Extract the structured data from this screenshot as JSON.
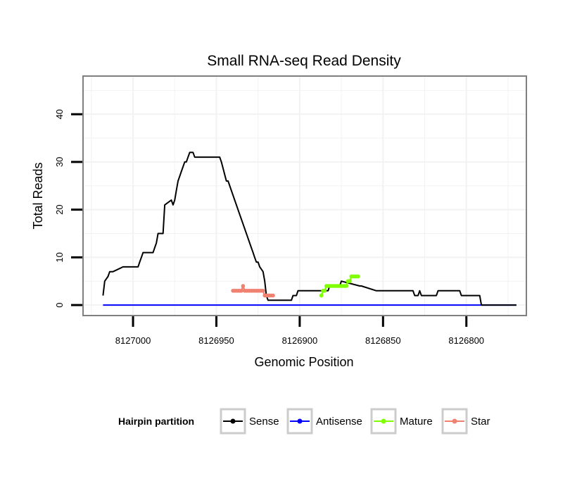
{
  "chart_data": {
    "type": "line",
    "title": "Small RNA-seq Read Density",
    "xlabel": "Genomic Position",
    "ylabel": "Total Reads",
    "x_reversed": true,
    "xlim": [
      8127030,
      8126764
    ],
    "ylim": [
      -2.2,
      48
    ],
    "x_ticks": [
      8127000,
      8126950,
      8126900,
      8126850,
      8126800
    ],
    "x_tick_labels": [
      "8127000",
      "8126950",
      "8126900",
      "8126850",
      "8126800"
    ],
    "y_ticks": [
      0,
      10,
      20,
      30,
      40
    ],
    "y_tick_labels": [
      "0",
      "10",
      "20",
      "30",
      "40"
    ],
    "grid": true,
    "legend": {
      "position": "bottom",
      "title": "Hairpin partition",
      "entries": [
        "Sense",
        "Antisense",
        "Mature",
        "Star"
      ]
    },
    "colors": {
      "Sense": "#000000",
      "Antisense": "#0000ff",
      "Mature": "#7fff00",
      "Star": "#f08070",
      "panel_border": "#7f7f7f",
      "grid": "#f2f2f2",
      "legend_key_border": "#cccccc"
    },
    "series": [
      {
        "name": "Sense",
        "x": [
          8127018,
          8127017,
          8127015,
          8127014,
          8127012,
          8127006,
          8127005,
          8126998,
          8126997,
          8126996,
          8126995,
          8126994,
          8126993,
          8126992,
          8126991,
          8126990,
          8126989,
          8126988,
          8126987,
          8126986,
          8126985,
          8126982,
          8126981,
          8126977,
          8126976,
          8126975,
          8126974,
          8126973,
          8126972,
          8126971,
          8126970,
          8126969,
          8126968,
          8126967,
          8126966,
          8126965,
          8126964,
          8126963,
          8126948,
          8126947,
          8126944,
          8126943,
          8126936,
          8126935,
          8126929,
          8126928,
          8126927,
          8126926,
          8126925,
          8126924,
          8126922,
          8126921,
          8126920,
          8126919,
          8126918,
          8126917,
          8126916,
          8126915,
          8126914,
          8126913,
          8126912,
          8126908,
          8126907,
          8126906,
          8126905,
          8126904,
          8126903,
          8126902,
          8126901,
          8126899,
          8126898,
          8126897,
          8126896,
          8126887,
          8126886,
          8126885,
          8126884,
          8126883,
          8126882,
          8126881,
          8126876,
          8126875,
          8126864,
          8126863,
          8126854,
          8126853,
          8126838,
          8126837,
          8126836,
          8126834,
          8126833,
          8126832,
          8126831,
          8126829,
          8126828,
          8126827,
          8126826,
          8126825,
          8126824,
          8126823,
          8126822,
          8126821,
          8126819,
          8126818,
          8126817,
          8126816,
          8126815,
          8126814,
          8126813,
          8126812,
          8126811,
          8126810,
          8126809,
          8126808,
          8126807,
          8126806,
          8126805,
          8126804,
          8126803,
          8126802,
          8126801,
          8126800,
          8126799,
          8126798,
          8126797,
          8126796,
          8126795,
          8126794,
          8126793,
          8126792,
          8126791,
          8126790,
          8126789,
          8126788,
          8126787,
          8126786,
          8126785,
          8126784,
          8126783,
          8126782,
          8126781,
          8126780,
          8126779,
          8126778,
          8126777,
          8126776,
          8126775,
          8126774,
          8126773,
          8126772,
          8126771,
          8126770
        ],
        "y": [
          2,
          5,
          6,
          7,
          7,
          8,
          8,
          8,
          8,
          9,
          10,
          11,
          11,
          11,
          11,
          11,
          11,
          11,
          12,
          13,
          15,
          15,
          21,
          22,
          21,
          22,
          24,
          26,
          27,
          28,
          29,
          30,
          30,
          31,
          32,
          32,
          32,
          31,
          31,
          30,
          26,
          26,
          19,
          18,
          12,
          11,
          10,
          9,
          9,
          8,
          7,
          5,
          2,
          1,
          1,
          1,
          1,
          1,
          1,
          1,
          1,
          1,
          1,
          1,
          1,
          2,
          2,
          2,
          3,
          3,
          3,
          3,
          3,
          3,
          3,
          3,
          3,
          3,
          4,
          4,
          4,
          5,
          4,
          4,
          3,
          3,
          3,
          3,
          3,
          3,
          3,
          3,
          2,
          2,
          3,
          2,
          2,
          2,
          2,
          2,
          2,
          2,
          2,
          2,
          3,
          3,
          3,
          3,
          3,
          3,
          3,
          3,
          3,
          3,
          3,
          3,
          3,
          3,
          2,
          2,
          2,
          2,
          2,
          2,
          2,
          2,
          2,
          2,
          2,
          2,
          0,
          0,
          0,
          0,
          0,
          0,
          0,
          0,
          0,
          0,
          0,
          0,
          0,
          0,
          0,
          0,
          0,
          0,
          0,
          0,
          0,
          0
        ]
      },
      {
        "name": "Antisense",
        "x": [
          8127018,
          8126770
        ],
        "y": [
          0,
          0
        ]
      },
      {
        "name": "Mature",
        "x": [
          8126887,
          8126886,
          8126885,
          8126884,
          8126883,
          8126882,
          8126881,
          8126880,
          8126879,
          8126878,
          8126877,
          8126876,
          8126875,
          8126874,
          8126873,
          8126872,
          8126871,
          8126870,
          8126869,
          8126868,
          8126867,
          8126866,
          8126865
        ],
        "y": [
          2,
          3,
          3,
          4,
          4,
          4,
          4,
          4,
          4,
          4,
          4,
          4,
          4,
          4,
          4,
          4,
          5,
          5,
          6,
          6,
          6,
          6,
          6
        ]
      },
      {
        "name": "Star",
        "x": [
          8126940,
          8126939,
          8126938,
          8126937,
          8126936,
          8126935,
          8126934,
          8126933,
          8126932,
          8126931,
          8126930,
          8126929,
          8126928,
          8126927,
          8126926,
          8126925,
          8126924,
          8126923,
          8126922,
          8126921,
          8126920,
          8126919,
          8126918,
          8126917,
          8126916
        ],
        "y": [
          3,
          3,
          3,
          3,
          3,
          3,
          4,
          3,
          3,
          3,
          3,
          3,
          3,
          3,
          3,
          3,
          3,
          3,
          3,
          2,
          2,
          2,
          2,
          2,
          2
        ]
      }
    ]
  }
}
